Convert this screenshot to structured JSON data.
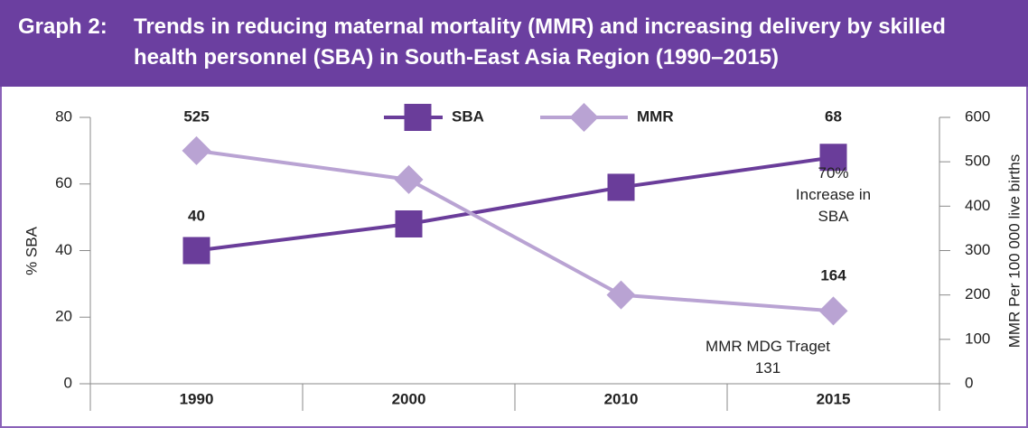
{
  "chart_data": {
    "type": "line",
    "label": "Graph 2:",
    "title": "Trends in reducing maternal mortality (MMR) and increasing delivery by skilled health personnel (SBA) in South-East Asia Region (1990–2015)",
    "categories": [
      "1990",
      "2000",
      "2010",
      "2015"
    ],
    "series": [
      {
        "name": "SBA",
        "color": "#6a3d9a",
        "marker": "square",
        "values": [
          40,
          48,
          59,
          68
        ]
      },
      {
        "name": "MMR",
        "color": "#b9a3d3",
        "marker": "diamond",
        "axis": "y2",
        "values": [
          525,
          460,
          200,
          164
        ]
      }
    ],
    "ylabel": "% SBA",
    "y2label": "MMR Per 100 000 live births",
    "ylim": [
      0,
      80
    ],
    "yticks": [
      0,
      20,
      40,
      60,
      80
    ],
    "y2lim": [
      0,
      600
    ],
    "y2ticks": [
      0,
      100,
      200,
      300,
      400,
      500,
      600
    ],
    "legend": "top",
    "annotations": [
      "70% Increase in SBA",
      "MMR MDG Traget 131"
    ]
  }
}
